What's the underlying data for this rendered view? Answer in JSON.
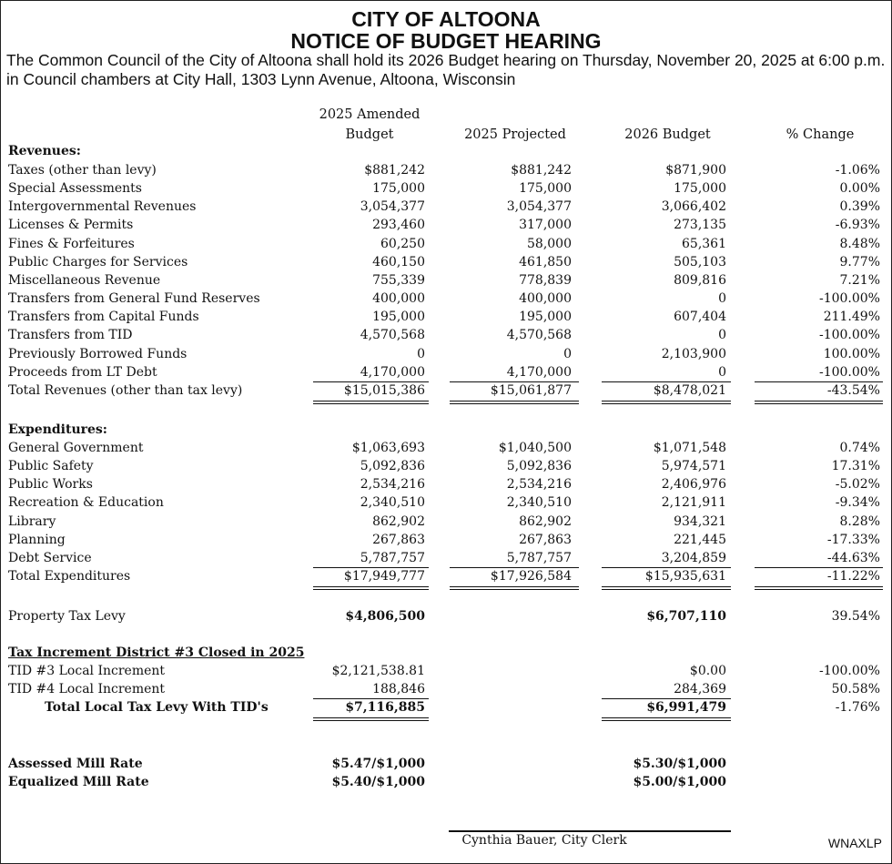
{
  "title_line1": "CITY OF ALTOONA",
  "title_line2": "NOTICE OF BUDGET HEARING",
  "intro": "The Common Council of the City of Altoona shall hold its 2026 Budget hearing on Thursday, November 20, 2025 at 6:00 p.m. in Council chambers at City Hall, 1303 Lynn Avenue, Altoona, Wisconsin",
  "columns": [
    "2025 Amended Budget",
    "2025 Projected",
    "2026 Budget",
    "% Change"
  ],
  "revenues": {
    "heading": "Revenues:",
    "rows": [
      {
        "label": "Taxes (other than levy)",
        "v": [
          "$881,242",
          "$881,242",
          "$871,900",
          "-1.06%"
        ]
      },
      {
        "label": "Special Assessments",
        "v": [
          "175,000",
          "175,000",
          "175,000",
          "0.00%"
        ]
      },
      {
        "label": "Intergovernmental Revenues",
        "v": [
          "3,054,377",
          "3,054,377",
          "3,066,402",
          "0.39%"
        ]
      },
      {
        "label": "Licenses & Permits",
        "v": [
          "293,460",
          "317,000",
          "273,135",
          "-6.93%"
        ]
      },
      {
        "label": "Fines & Forfeitures",
        "v": [
          "60,250",
          "58,000",
          "65,361",
          "8.48%"
        ]
      },
      {
        "label": "Public Charges for Services",
        "v": [
          "460,150",
          "461,850",
          "505,103",
          "9.77%"
        ]
      },
      {
        "label": "Miscellaneous Revenue",
        "v": [
          "755,339",
          "778,839",
          "809,816",
          "7.21%"
        ]
      },
      {
        "label": "Transfers from General Fund Reserves",
        "v": [
          "400,000",
          "400,000",
          "0",
          "-100.00%"
        ]
      },
      {
        "label": "Transfers from Capital Funds",
        "v": [
          "195,000",
          "195,000",
          "607,404",
          "211.49%"
        ]
      },
      {
        "label": "Transfers from TID",
        "v": [
          "4,570,568",
          "4,570,568",
          "0",
          "-100.00%"
        ]
      },
      {
        "label": "Previously Borrowed Funds",
        "v": [
          "0",
          "0",
          "2,103,900",
          "100.00%"
        ]
      },
      {
        "label": "Proceeds from LT Debt",
        "v": [
          "4,170,000",
          "4,170,000",
          "0",
          "-100.00%"
        ]
      }
    ],
    "total": {
      "label": "Total Revenues (other than tax levy)",
      "v": [
        "$15,015,386",
        "$15,061,877",
        "$8,478,021",
        "-43.54%"
      ]
    }
  },
  "expenditures": {
    "heading": "Expenditures:",
    "rows": [
      {
        "label": "General Government",
        "v": [
          "$1,063,693",
          "$1,040,500",
          "$1,071,548",
          "0.74%"
        ]
      },
      {
        "label": "Public Safety",
        "v": [
          "5,092,836",
          "5,092,836",
          "5,974,571",
          "17.31%"
        ]
      },
      {
        "label": "Public Works",
        "v": [
          "2,534,216",
          "2,534,216",
          "2,406,976",
          "-5.02%"
        ]
      },
      {
        "label": "Recreation & Education",
        "v": [
          "2,340,510",
          "2,340,510",
          "2,121,911",
          "-9.34%"
        ]
      },
      {
        "label": "Library",
        "v": [
          "862,902",
          "862,902",
          "934,321",
          "8.28%"
        ]
      },
      {
        "label": "Planning",
        "v": [
          "267,863",
          "267,863",
          "221,445",
          "-17.33%"
        ]
      },
      {
        "label": "Debt Service",
        "v": [
          "5,787,757",
          "5,787,757",
          "3,204,859",
          "-44.63%"
        ]
      }
    ],
    "total": {
      "label": "Total Expenditures",
      "v": [
        "$17,949,777",
        "$17,926,584",
        "$15,935,631",
        "-11.22%"
      ]
    }
  },
  "levy": {
    "label": "Property Tax Levy",
    "v": [
      "$4,806,500",
      "",
      "$6,707,110",
      "39.54%"
    ]
  },
  "tid": {
    "heading": "Tax Increment District #3 Closed in 2025",
    "rows": [
      {
        "label": "TID #3 Local Increment",
        "v": [
          "$2,121,538.81",
          "",
          "$0.00",
          "-100.00%"
        ]
      },
      {
        "label": "TID #4 Local Increment",
        "v": [
          "188,846",
          "",
          "284,369",
          "50.58%"
        ]
      }
    ],
    "total": {
      "label": "Total Local Tax Levy With TID's",
      "v": [
        "$7,116,885",
        "",
        "$6,991,479",
        "-1.76%"
      ]
    }
  },
  "mill_rates": [
    {
      "label": "Assessed Mill Rate",
      "v": [
        "$5.47/$1,000",
        "",
        "$5.30/$1,000",
        ""
      ]
    },
    {
      "label": "Equalized Mill Rate",
      "v": [
        "$5.40/$1,000",
        "",
        "$5.00/$1,000",
        ""
      ]
    }
  ],
  "signature": "Cynthia Bauer, City Clerk",
  "code": "WNAXLP"
}
